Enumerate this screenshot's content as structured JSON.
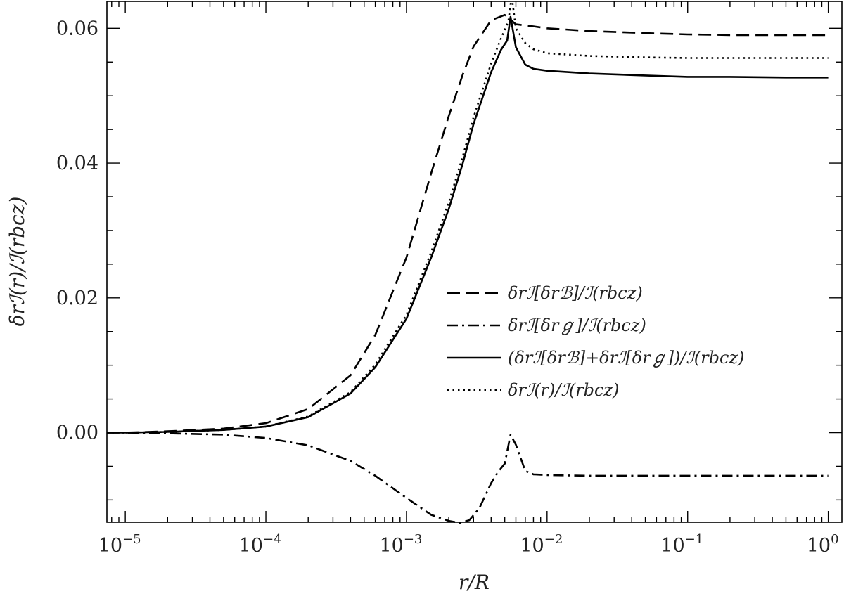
{
  "chart_data": {
    "type": "line",
    "title": "",
    "xlabel": "r/R",
    "ylabel": "δrℐ(r)/ℐ(rbcz)",
    "x_scale": "log",
    "xlim": [
      7.4e-06,
      1.25
    ],
    "ylim": [
      -0.0133,
      0.064
    ],
    "grid": false,
    "legend_position": "center-right",
    "x_tick_labels": [
      {
        "value": 1e-05,
        "base": "10",
        "exp": "−5"
      },
      {
        "value": 0.0001,
        "base": "10",
        "exp": "−4"
      },
      {
        "value": 0.001,
        "base": "10",
        "exp": "−3"
      },
      {
        "value": 0.01,
        "base": "10",
        "exp": "−2"
      },
      {
        "value": 0.1,
        "base": "10",
        "exp": "−1"
      },
      {
        "value": 1,
        "base": "10",
        "exp": "0"
      }
    ],
    "y_tick_labels": [
      {
        "value": 0.0,
        "label": "0.00"
      },
      {
        "value": 0.02,
        "label": "0.02"
      },
      {
        "value": 0.04,
        "label": "0.04"
      },
      {
        "value": 0.06,
        "label": "0.06"
      }
    ],
    "series": [
      {
        "name": "δrℐ[δrℬ]/ℐ(rbcz)",
        "style": "dashed",
        "x": [
          7.4e-06,
          1e-05,
          2e-05,
          5e-05,
          0.0001,
          0.0002,
          0.0004,
          0.0006,
          0.001,
          0.0015,
          0.002,
          0.0025,
          0.003,
          0.004,
          0.005,
          0.006,
          0.008,
          0.01,
          0.02,
          0.05,
          0.1,
          0.2,
          0.5,
          1
        ],
        "y": [
          0.0,
          0.0,
          0.0002,
          0.0006,
          0.0014,
          0.0035,
          0.0085,
          0.0145,
          0.026,
          0.0385,
          0.047,
          0.053,
          0.0573,
          0.0612,
          0.062,
          0.0606,
          0.0603,
          0.06,
          0.0596,
          0.0593,
          0.0591,
          0.059,
          0.059,
          0.059
        ]
      },
      {
        "name": "δrℐ[δrℊ]/ℐ(rbcz)",
        "style": "dashdot",
        "x": [
          7.4e-06,
          1e-05,
          2e-05,
          5e-05,
          0.0001,
          0.0002,
          0.0004,
          0.0006,
          0.001,
          0.0015,
          0.002,
          0.0024,
          0.0028,
          0.0033,
          0.004,
          0.0045,
          0.005,
          0.0055,
          0.006,
          0.007,
          0.008,
          0.01,
          0.02,
          0.05,
          0.1,
          0.2,
          0.5,
          1
        ],
        "y": [
          0.0,
          0.0,
          -0.0001,
          -0.0003,
          -0.0008,
          -0.0019,
          -0.0042,
          -0.0064,
          -0.0097,
          -0.0122,
          -0.0131,
          -0.0134,
          -0.013,
          -0.0112,
          -0.0075,
          -0.0058,
          -0.0046,
          -0.0003,
          -0.0018,
          -0.0057,
          -0.0062,
          -0.0063,
          -0.0064,
          -0.0064,
          -0.0064,
          -0.0064,
          -0.0064,
          -0.0064
        ]
      },
      {
        "name": "(δrℐ[δrℬ]+δrℐ[δrℊ])/ℐ(rbcz)",
        "style": "solid",
        "x": [
          7.4e-06,
          1e-05,
          2e-05,
          5e-05,
          0.0001,
          0.0002,
          0.0004,
          0.0006,
          0.001,
          0.0015,
          0.002,
          0.0025,
          0.003,
          0.004,
          0.0047,
          0.0052,
          0.0055,
          0.006,
          0.007,
          0.008,
          0.01,
          0.02,
          0.05,
          0.1,
          0.2,
          0.5,
          1
        ],
        "y": [
          0.0,
          0.0,
          0.0001,
          0.0004,
          0.0009,
          0.0023,
          0.0058,
          0.0097,
          0.0169,
          0.026,
          0.0332,
          0.0398,
          0.0458,
          0.0535,
          0.0568,
          0.0582,
          0.0617,
          0.0572,
          0.0546,
          0.054,
          0.0537,
          0.0533,
          0.053,
          0.0528,
          0.0528,
          0.0527,
          0.0527
        ]
      },
      {
        "name": "δrℐ(r)/ℐ(rbcz)",
        "style": "dotted",
        "x": [
          7.4e-06,
          1e-05,
          2e-05,
          5e-05,
          0.0001,
          0.0002,
          0.0004,
          0.0006,
          0.001,
          0.0015,
          0.002,
          0.0025,
          0.003,
          0.004,
          0.0047,
          0.0053,
          0.0056,
          0.006,
          0.007,
          0.008,
          0.01,
          0.02,
          0.05,
          0.1,
          0.2,
          0.5,
          1
        ],
        "y": [
          0.0,
          0.0,
          0.0001,
          0.0004,
          0.0009,
          0.0024,
          0.006,
          0.0101,
          0.0175,
          0.0268,
          0.0342,
          0.0408,
          0.0468,
          0.0548,
          0.0585,
          0.061,
          0.0648,
          0.06,
          0.0578,
          0.0569,
          0.0563,
          0.0559,
          0.0557,
          0.0556,
          0.0556,
          0.0556,
          0.0556
        ]
      }
    ]
  }
}
